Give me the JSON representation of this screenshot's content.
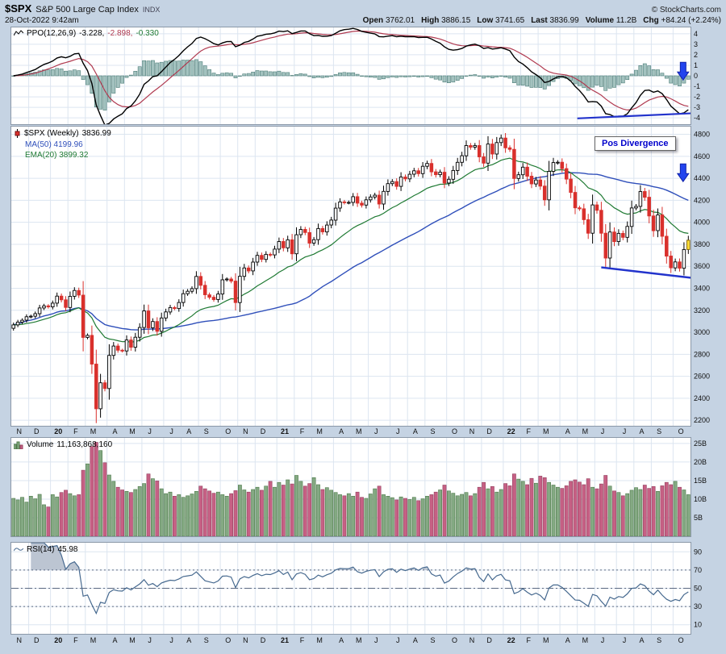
{
  "header": {
    "symbol": "$SPX",
    "title": "S&P 500 Large Cap Index",
    "exchange": "INDX",
    "datetime": "28-Oct-2022 9:42am",
    "copyright": "© StockCharts.com",
    "quote": [
      {
        "label": "Open",
        "value": "3762.01"
      },
      {
        "label": "High",
        "value": "3886.15"
      },
      {
        "label": "Low",
        "value": "3741.65"
      },
      {
        "label": "Last",
        "value": "3836.99"
      },
      {
        "label": "Volume",
        "value": "11.2B"
      },
      {
        "label": "Chg",
        "value": "+84.24 (+2.24%)"
      }
    ]
  },
  "legends": {
    "ppo": {
      "name": "PPO(12,26,9)",
      "v1": "-3.228,",
      "v2": "-2.898,",
      "v3": "-0.330"
    },
    "price": {
      "name": "$SPX (Weekly)",
      "last": "3836.99",
      "ma": "MA(50) 4199.96",
      "ema": "EMA(20) 3899.32"
    },
    "volume": {
      "name": "Volume",
      "value": "11,163,868,160"
    },
    "rsi": {
      "name": "RSI(14)",
      "value": "45.98"
    }
  },
  "annotation": {
    "text": "Pos Divergence"
  },
  "chart_data": {
    "type": "candlestick",
    "symbol": "$SPX",
    "timeframe": "weekly",
    "x_range": [
      "Nov-2019",
      "Oct-2022"
    ],
    "price_axis_range": [
      2200,
      4800
    ],
    "x_labels": [
      {
        "t": "N",
        "w": 0
      },
      {
        "t": "D",
        "w": 4
      },
      {
        "t": "20",
        "w": 9,
        "y": 1
      },
      {
        "t": "F",
        "w": 13
      },
      {
        "t": "M",
        "w": 17
      },
      {
        "t": "A",
        "w": 22
      },
      {
        "t": "M",
        "w": 26
      },
      {
        "t": "J",
        "w": 30
      },
      {
        "t": "J",
        "w": 35
      },
      {
        "t": "A",
        "w": 39
      },
      {
        "t": "S",
        "w": 43
      },
      {
        "t": "O",
        "w": 48
      },
      {
        "t": "N",
        "w": 52
      },
      {
        "t": "D",
        "w": 56
      },
      {
        "t": "21",
        "w": 61,
        "y": 1
      },
      {
        "t": "F",
        "w": 65
      },
      {
        "t": "M",
        "w": 69
      },
      {
        "t": "A",
        "w": 74
      },
      {
        "t": "M",
        "w": 78
      },
      {
        "t": "J",
        "w": 82
      },
      {
        "t": "J",
        "w": 87
      },
      {
        "t": "A",
        "w": 91
      },
      {
        "t": "S",
        "w": 95
      },
      {
        "t": "O",
        "w": 100
      },
      {
        "t": "N",
        "w": 104
      },
      {
        "t": "D",
        "w": 108
      },
      {
        "t": "22",
        "w": 113,
        "y": 1
      },
      {
        "t": "F",
        "w": 117
      },
      {
        "t": "M",
        "w": 121
      },
      {
        "t": "A",
        "w": 126
      },
      {
        "t": "M",
        "w": 130
      },
      {
        "t": "J",
        "w": 134
      },
      {
        "t": "J",
        "w": 139
      },
      {
        "t": "A",
        "w": 143
      },
      {
        "t": "S",
        "w": 147
      },
      {
        "t": "O",
        "w": 152
      }
    ],
    "price_ticks": [
      4800,
      4600,
      4400,
      4200,
      4000,
      3800,
      3600,
      3400,
      3200,
      3000,
      2800,
      2600,
      2400,
      2200
    ],
    "ppo_ticks": [
      4,
      3,
      2,
      1,
      0,
      -1,
      -2,
      -3,
      -4
    ],
    "volume_ticks": [
      {
        "v": 25,
        "label": "25B"
      },
      {
        "v": 20,
        "label": "20B"
      },
      {
        "v": 15,
        "label": "15B"
      },
      {
        "v": 10,
        "label": "10B"
      },
      {
        "v": 5,
        "label": "5B"
      }
    ],
    "rsi_ticks": [
      90,
      70,
      50,
      30,
      10
    ],
    "closes": [
      3067,
      3093,
      3110,
      3141,
      3146,
      3169,
      3221,
      3240,
      3231,
      3265,
      3329,
      3295,
      3226,
      3327,
      3380,
      3338,
      2954,
      2972,
      2711,
      2305,
      2541,
      2489,
      2790,
      2875,
      2837,
      2830,
      2930,
      2864,
      2955,
      3044,
      3194,
      3041,
      3098,
      3009,
      3130,
      3185,
      3225,
      3216,
      3271,
      3351,
      3373,
      3397,
      3508,
      3427,
      3341,
      3319,
      3298,
      3348,
      3477,
      3484,
      3465,
      3270,
      3509,
      3585,
      3558,
      3638,
      3699,
      3663,
      3709,
      3703,
      3756,
      3825,
      3768,
      3841,
      3714,
      3887,
      3935,
      3907,
      3811,
      3842,
      3943,
      3913,
      3975,
      4020,
      4129,
      4185,
      4180,
      4181,
      4233,
      4174,
      4156,
      4204,
      4230,
      4247,
      4166,
      4281,
      4352,
      4370,
      4327,
      4412,
      4395,
      4437,
      4468,
      4442,
      4509,
      4535,
      4459,
      4433,
      4455,
      4357,
      4391,
      4471,
      4545,
      4605,
      4698,
      4683,
      4698,
      4595,
      4538,
      4712,
      4621,
      4725,
      4766,
      4677,
      4663,
      4398,
      4432,
      4501,
      4419,
      4349,
      4385,
      4329,
      4204,
      4463,
      4543,
      4546,
      4488,
      4393,
      4272,
      4132,
      4123,
      4024,
      3901,
      4158,
      4109,
      3901,
      3675,
      3912,
      3825,
      3899,
      3863,
      3962,
      4130,
      4145,
      4280,
      4228,
      4058,
      3924,
      4067,
      3873,
      3693,
      3586,
      3640,
      3583,
      3753,
      3837
    ],
    "volumes_billions": [
      10.2,
      9.8,
      10.5,
      9.2,
      10.8,
      10.1,
      11.3,
      8.5,
      7.9,
      11.2,
      10.6,
      11.8,
      12.4,
      11.5,
      10.9,
      11.2,
      17.8,
      19.5,
      24.2,
      25.3,
      23.1,
      19.8,
      16.5,
      14.8,
      13.2,
      12.5,
      12.1,
      11.8,
      12.6,
      13.4,
      14.2,
      16.8,
      15.5,
      14.9,
      12.8,
      11.5,
      11.9,
      10.8,
      11.2,
      10.5,
      10.9,
      11.4,
      12.1,
      13.5,
      12.8,
      12.2,
      11.6,
      11.9,
      11.2,
      10.8,
      11.5,
      12.3,
      13.8,
      12.5,
      11.9,
      12.6,
      13.2,
      12.4,
      13.5,
      14.8,
      13.2,
      14.5,
      13.8,
      15.2,
      14.1,
      16.4,
      14.8,
      13.5,
      14.2,
      15.8,
      13.9,
      12.6,
      13.1,
      12.4,
      11.8,
      11.2,
      10.9,
      11.5,
      10.8,
      11.9,
      10.5,
      10.2,
      11.4,
      12.8,
      13.5,
      11.2,
      10.8,
      10.4,
      9.8,
      10.6,
      10.2,
      9.9,
      10.5,
      9.6,
      10.1,
      10.8,
      11.2,
      11.9,
      12.5,
      13.8,
      12.2,
      11.6,
      10.9,
      11.3,
      11.8,
      10.9,
      11.5,
      13.2,
      14.5,
      12.8,
      13.4,
      11.9,
      12.6,
      14.2,
      13.6,
      16.8,
      15.4,
      14.8,
      13.9,
      15.6,
      14.3,
      16.2,
      15.8,
      14.5,
      13.8,
      13.2,
      12.9,
      13.6,
      14.8,
      15.2,
      14.6,
      13.9,
      15.5,
      13.2,
      12.8,
      14.1,
      16.4,
      13.5,
      12.2,
      11.8,
      10.9,
      11.5,
      12.4,
      13.1,
      12.6,
      13.8,
      12.9,
      13.4,
      12.1,
      13.6,
      14.5,
      13.9,
      14.8,
      13.2,
      12.5,
      11.2
    ],
    "indicators": {
      "ppo_params": [
        12,
        26,
        9
      ],
      "ppo_last": [
        -3.228,
        -2.898,
        -0.33
      ],
      "ma_period": 50,
      "ma_last": 4199.96,
      "ema_period": 20,
      "ema_last": 3899.32,
      "rsi_period": 14,
      "rsi_last": 45.98,
      "volume_last": 11163868160
    },
    "annotations": {
      "pos_divergence_label": "Pos Divergence",
      "price_trendline": {
        "w1": 135.5,
        "v1": 3590,
        "w2": 156.3,
        "v2": 3495
      },
      "ppo_trendline": {
        "w1": 130,
        "v1": -4.05,
        "w2": 157,
        "v2": -3.55
      },
      "price_arrow": {
        "w": 154.3,
        "tip": 4370
      },
      "ppo_arrow": {
        "w": 154.3,
        "tip": -0.4
      }
    }
  },
  "colors": {
    "background": "#c5d3e3",
    "panel_bg": "#ffffff",
    "panel_border": "#8b98a8",
    "grid": "#dce5f0",
    "axis_text": "#111111",
    "candle_up": "#000000",
    "candle_up_fill": "#ffffff",
    "candle_down": "#d9302c",
    "last_candle_fill": "#ffe13a",
    "ma50": "#2f4fba",
    "ema20": "#1f7a33",
    "ppo_line": "#000000",
    "ppo_signal": "#b03a50",
    "ppo_hist_fill": "#a3c2bf",
    "ppo_hist_stroke": "#4d7d78",
    "volume_up_fill": "#84a983",
    "volume_up_stroke": "#4e7a4a",
    "volume_down_fill": "#c66084",
    "volume_down_stroke": "#94415f",
    "rsi_line": "#46698f",
    "rsi_shade": "#bcc5d2",
    "rsi_guides": "#5a6880",
    "annotation_blue": "#0000cc",
    "arrow_blue": "#2244ee",
    "trendline_blue": "#2233cc"
  }
}
